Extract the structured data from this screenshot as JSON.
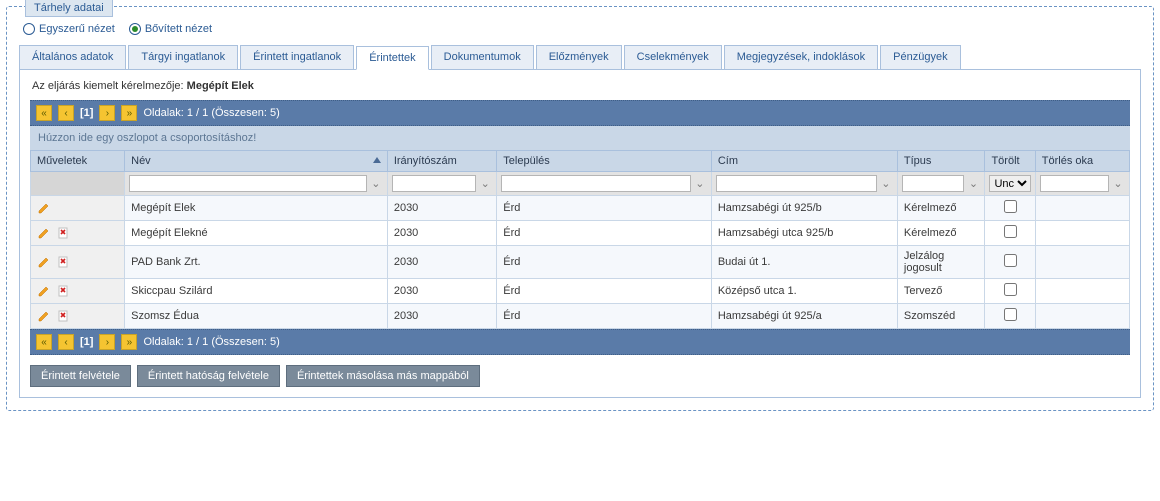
{
  "fieldset_title": "Tárhely adatai",
  "view": {
    "simple": "Egyszerű nézet",
    "extended": "Bővített nézet",
    "selected": "extended"
  },
  "tabs": [
    {
      "id": "altalanos",
      "label": "Általános adatok"
    },
    {
      "id": "targyi",
      "label": "Tárgyi ingatlanok"
    },
    {
      "id": "erintett_ing",
      "label": "Érintett ingatlanok"
    },
    {
      "id": "erintettek",
      "label": "Érintettek",
      "active": true
    },
    {
      "id": "dokumentumok",
      "label": "Dokumentumok"
    },
    {
      "id": "elozmenyek",
      "label": "Előzmények"
    },
    {
      "id": "cselekmenyek",
      "label": "Cselekmények"
    },
    {
      "id": "megjegyzesek",
      "label": "Megjegyzések, indoklások"
    },
    {
      "id": "penzugyek",
      "label": "Pénzügyek"
    }
  ],
  "highlight": {
    "prefix": "Az eljárás kiemelt kérelmezője: ",
    "name": "Megépít Elek"
  },
  "pager": {
    "page_display": "[1]",
    "summary": "Oldalak: 1 / 1 (Összesen: 5)"
  },
  "group_hint": "Húzzon ide egy oszlopot a csoportosításhoz!",
  "columns": {
    "ops": "Műveletek",
    "name": "Név",
    "zip": "Irányítószám",
    "city": "Település",
    "addr": "Cím",
    "type": "Típus",
    "deleted": "Törölt",
    "delreason": "Törlés oka"
  },
  "col_widths": {
    "ops": "86px",
    "name": "240px",
    "zip": "100px",
    "city": "196px",
    "addr": "170px",
    "type": "80px",
    "deleted": "46px",
    "delreason": "86px"
  },
  "deleted_filter_selected": "Unc",
  "rows": [
    {
      "ops": "edit",
      "name": "Megépít Elek",
      "zip": "2030",
      "city": "Érd",
      "addr": "Hamzsabégi út 925/b",
      "type": "Kérelmező",
      "deleted": false,
      "delreason": ""
    },
    {
      "ops": "edit_del",
      "name": "Megépít Elekné",
      "zip": "2030",
      "city": "Érd",
      "addr": "Hamzsabégi utca 925/b",
      "type": "Kérelmező",
      "deleted": false,
      "delreason": ""
    },
    {
      "ops": "edit_del",
      "name": "PAD Bank Zrt.",
      "zip": "2030",
      "city": "Érd",
      "addr": "Budai út 1.",
      "type": "Jelzálog jogosult",
      "deleted": false,
      "delreason": ""
    },
    {
      "ops": "edit_del",
      "name": "Skiccpau Szilárd",
      "zip": "2030",
      "city": "Érd",
      "addr": "Középső utca 1.",
      "type": "Tervező",
      "deleted": false,
      "delreason": ""
    },
    {
      "ops": "edit_del",
      "name": "Szomsz Édua",
      "zip": "2030",
      "city": "Érd",
      "addr": "Hamzsabégi út 925/a",
      "type": "Szomszéd",
      "deleted": false,
      "delreason": ""
    }
  ],
  "actions": {
    "add": "Érintett felvétele",
    "add_auth": "Érintett hatóság felvétele",
    "copy": "Érintettek másolása más mappából"
  },
  "colors": {
    "border": "#a9c0dd",
    "header_bg": "#c9d7e7",
    "pager_bg": "#5a7ba8",
    "pager_btn": "#f5c431",
    "action_btn": "#7a8a9a"
  }
}
